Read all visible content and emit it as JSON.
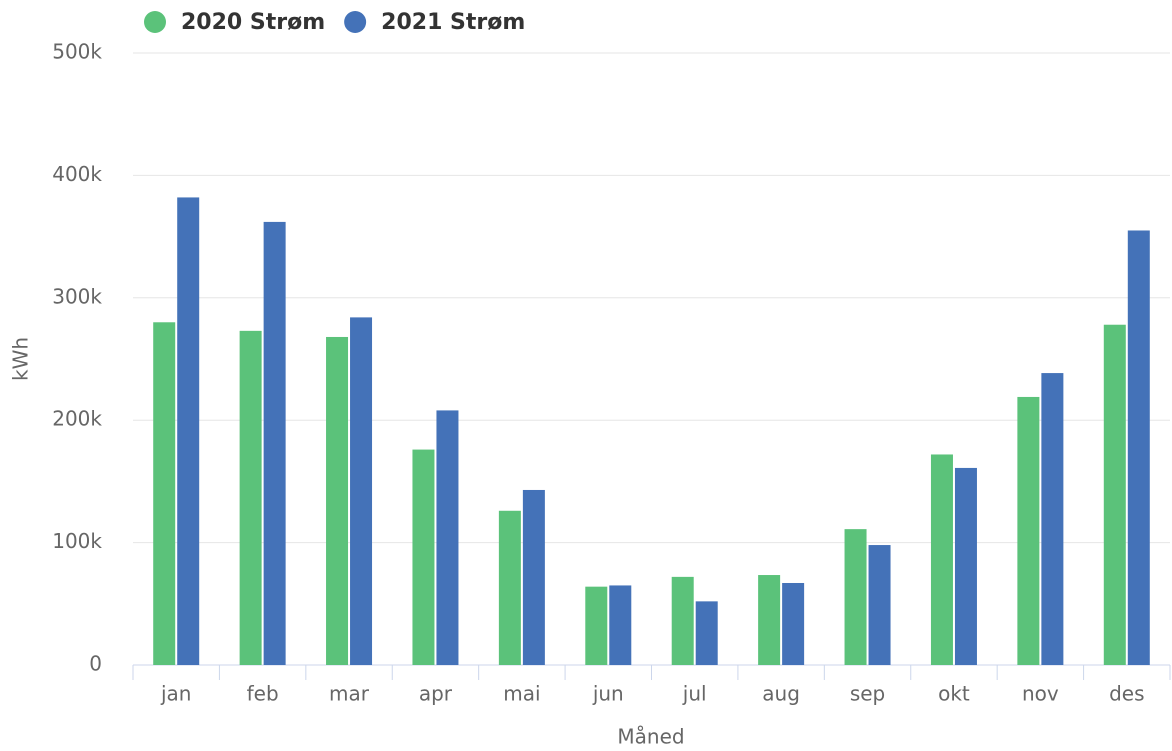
{
  "chart_data": {
    "type": "bar",
    "x_label": "Måned",
    "y_label": "kWh",
    "categories": [
      "jan",
      "feb",
      "mar",
      "apr",
      "mai",
      "jun",
      "jul",
      "aug",
      "sep",
      "okt",
      "nov",
      "des"
    ],
    "series": [
      {
        "name": "2020 Strøm",
        "color": "#5bc27a",
        "values": [
          280000,
          273000,
          268000,
          176000,
          126000,
          64000,
          72000,
          73500,
          111000,
          172000,
          219000,
          278000
        ]
      },
      {
        "name": "2021 Strøm",
        "color": "#4472b8",
        "values": [
          382000,
          362000,
          284000,
          208000,
          143000,
          65000,
          52000,
          67000,
          98000,
          161000,
          238500,
          355000
        ]
      }
    ],
    "ylim": [
      0,
      500000
    ],
    "yticks": [
      0,
      {
        "value": 100000,
        "label": "100k"
      },
      {
        "value": 200000,
        "label": "200k"
      },
      {
        "value": 300000,
        "label": "300k"
      },
      {
        "value": 400000,
        "label": "400k"
      },
      {
        "value": 500000,
        "label": "500k"
      }
    ],
    "grid": true,
    "legend": "top-left"
  }
}
